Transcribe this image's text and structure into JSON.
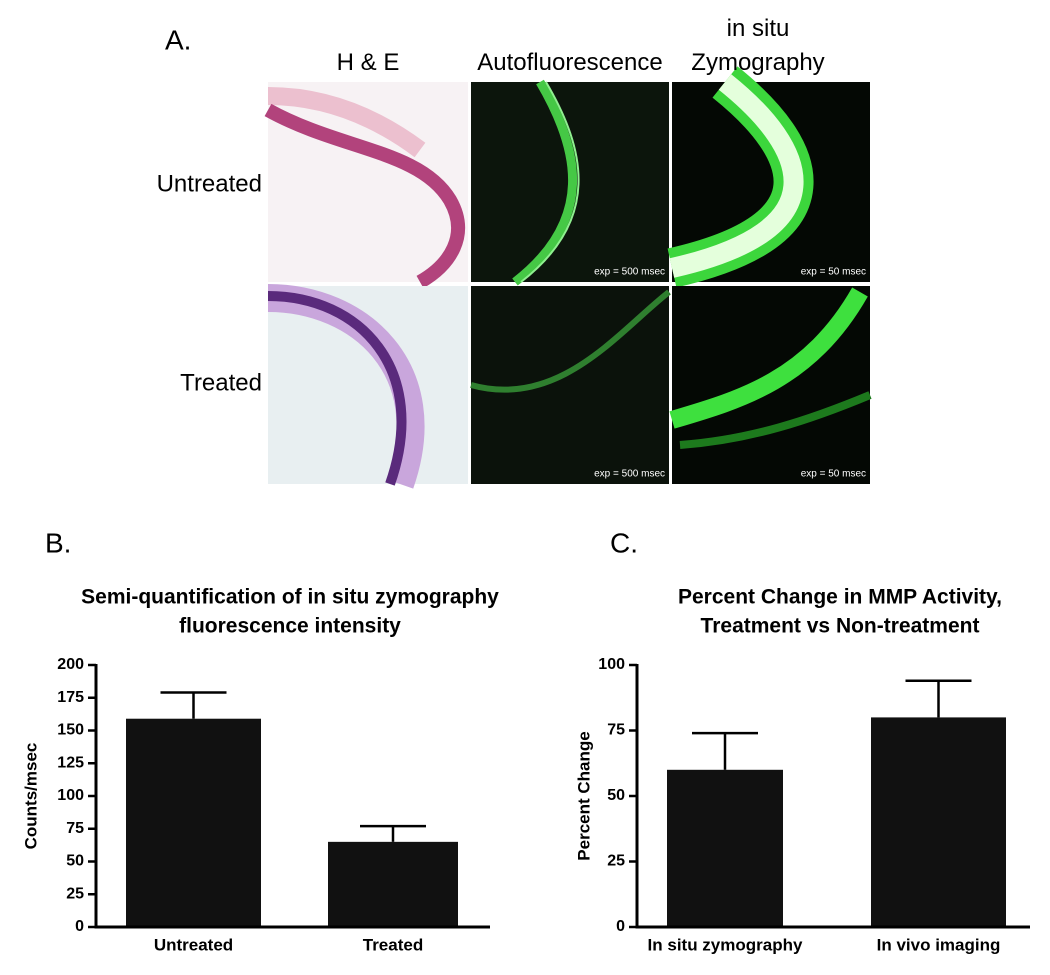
{
  "panel_a": {
    "label": "A.",
    "columns": [
      "H & E",
      "Autofluorescence",
      "in situ Zymography"
    ],
    "rows": [
      "Untreated",
      "Treated"
    ],
    "exposures": [
      [
        "exp = 500 msec",
        "exp = 50 msec"
      ],
      [
        "exp = 500 msec",
        "exp = 50 msec"
      ]
    ]
  },
  "chart_data": [
    {
      "type": "bar",
      "label": "B.",
      "title": [
        "Semi-quantification of in situ zymography",
        "fluorescence intensity"
      ],
      "y_label": "Counts/msec",
      "categories": [
        "Untreated",
        "Treated"
      ],
      "values": [
        159,
        65
      ],
      "errors": [
        20,
        12
      ],
      "color": "#111111",
      "ylim": [
        0,
        200
      ],
      "yticks": [
        0,
        25,
        50,
        75,
        100,
        125,
        150,
        175,
        200
      ]
    },
    {
      "type": "bar",
      "label": "C.",
      "title": [
        "Percent Change in MMP Activity,",
        "Treatment vs Non-treatment"
      ],
      "y_label": "Percent Change",
      "categories": [
        "In situ zymography",
        "In vivo imaging"
      ],
      "values": [
        60,
        80
      ],
      "errors": [
        14,
        14
      ],
      "color": "#111111",
      "ylim": [
        0,
        100
      ],
      "yticks": [
        0,
        25,
        50,
        75,
        100
      ]
    }
  ]
}
